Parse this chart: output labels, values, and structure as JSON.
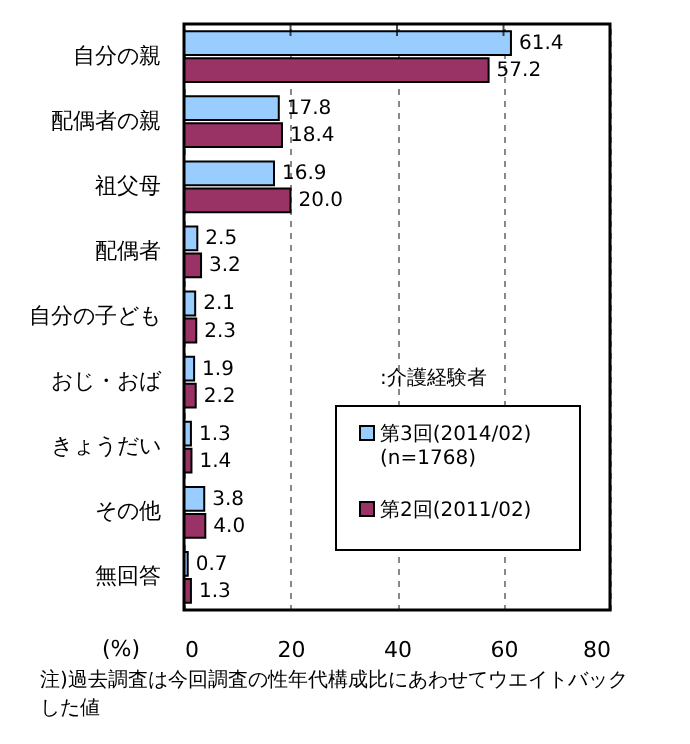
{
  "chart_data": {
    "type": "bar",
    "orientation": "horizontal",
    "categories": [
      "自分の親",
      "配偶者の親",
      "祖父母",
      "配偶者",
      "自分の子ども",
      "おじ・おば",
      "きょうだい",
      "その他",
      "無回答"
    ],
    "series": [
      {
        "name": "第3回(2014/02)\n(n=1768)",
        "color": "#99ccff",
        "values": [
          61.4,
          17.8,
          16.9,
          2.5,
          2.1,
          1.9,
          1.3,
          3.8,
          0.7
        ],
        "value_labels": [
          "61.4",
          "17.8",
          "16.9",
          "2.5",
          "2.1",
          "1.9",
          "1.3",
          "3.8",
          "0.7"
        ]
      },
      {
        "name": "第2回(2011/02)",
        "color": "#993366",
        "values": [
          57.2,
          18.4,
          20.0,
          3.2,
          2.3,
          2.2,
          1.4,
          4.0,
          1.3
        ],
        "value_labels": [
          "57.2",
          "18.4",
          "20.0",
          "3.2",
          "2.3",
          "2.2",
          "1.4",
          "4.0",
          "1.3"
        ]
      }
    ],
    "xlim": [
      0,
      80
    ],
    "xticks": [
      0,
      20,
      40,
      60,
      80
    ],
    "grid": "x",
    "data_labels": true,
    "xlabel": "(%)",
    "legend_title": ":介護経験者",
    "legend": "right",
    "annotations": [
      "注)過去調査は今回調査の性年代構成比にあわせてウエイトバックした値"
    ]
  }
}
